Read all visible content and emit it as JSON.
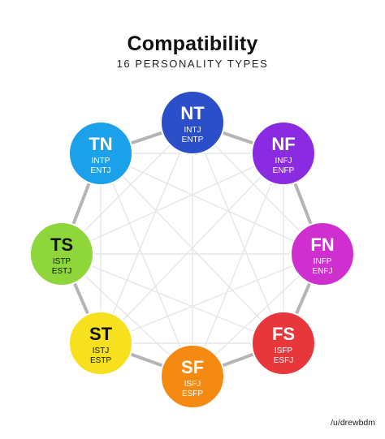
{
  "title": "Compatibility",
  "subtitle": "16 PERSONALITY TYPES",
  "credit": "/u/drewbdm",
  "colors": {
    "ring": "#b5b5b5",
    "inner_lines": "#e6e6e6"
  },
  "nodes": [
    {
      "id": "nt",
      "abbr": "NT",
      "types": [
        "INTJ",
        "ENTP"
      ],
      "color": "#2b4fc9",
      "text_color": "light"
    },
    {
      "id": "nf",
      "abbr": "NF",
      "types": [
        "INFJ",
        "ENFP"
      ],
      "color": "#8a2be2",
      "text_color": "light"
    },
    {
      "id": "fn",
      "abbr": "FN",
      "types": [
        "INFP",
        "ENFJ"
      ],
      "color": "#cf2fcf",
      "text_color": "light"
    },
    {
      "id": "fs",
      "abbr": "FS",
      "types": [
        "ISFP",
        "ESFJ"
      ],
      "color": "#e8373b",
      "text_color": "light"
    },
    {
      "id": "sf",
      "abbr": "SF",
      "types": [
        "ISFJ",
        "ESFP"
      ],
      "color": "#f58a12",
      "text_color": "light"
    },
    {
      "id": "st",
      "abbr": "ST",
      "types": [
        "ISTJ",
        "ESTP"
      ],
      "color": "#f7e01e",
      "text_color": "dark"
    },
    {
      "id": "ts",
      "abbr": "TS",
      "types": [
        "ISTP",
        "ESTJ"
      ],
      "color": "#8fd63b",
      "text_color": "dark"
    },
    {
      "id": "tn",
      "abbr": "TN",
      "types": [
        "INTP",
        "ENTJ"
      ],
      "color": "#1ba1ea",
      "text_color": "light"
    }
  ]
}
